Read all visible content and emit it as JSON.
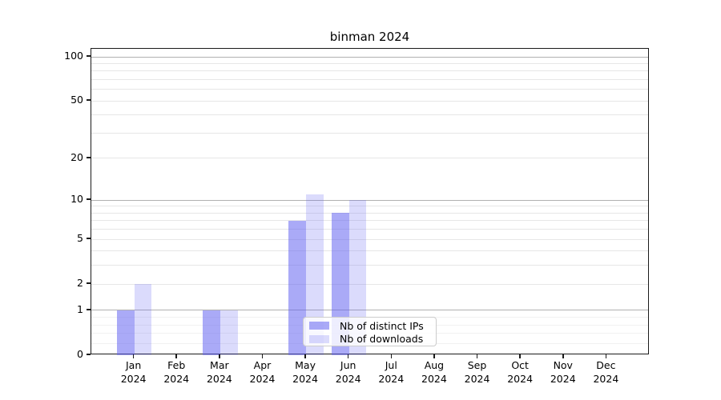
{
  "title": "binman 2024",
  "legend": {
    "items": [
      {
        "label": "Nb of distinct IPs",
        "color": "rgba(100,100,240,0.55)"
      },
      {
        "label": "Nb of downloads",
        "color": "rgba(100,100,240,0.23)"
      }
    ]
  },
  "chart_data": {
    "type": "bar",
    "title": "binman 2024",
    "categories": [
      "Jan",
      "Feb",
      "Mar",
      "Apr",
      "May",
      "Jun",
      "Jul",
      "Aug",
      "Sep",
      "Oct",
      "Nov",
      "Dec"
    ],
    "year_label": "2024",
    "series": [
      {
        "name": "Nb of distinct IPs",
        "color": "rgba(100,100,240,0.55)",
        "values": [
          1,
          0,
          1,
          0,
          7,
          8,
          0,
          0,
          0,
          0,
          0,
          0
        ]
      },
      {
        "name": "Nb of downloads",
        "color": "rgba(100,100,240,0.23)",
        "values": [
          2,
          0,
          1,
          0,
          11,
          10,
          0,
          0,
          0,
          0,
          0,
          0
        ]
      }
    ],
    "yscale": "log1p",
    "ylim": [
      0,
      113
    ],
    "yticks": [
      0,
      1,
      2,
      5,
      10,
      20,
      50,
      100
    ],
    "major_gridlines": [
      1,
      10,
      100
    ],
    "minor_gridlines": [
      2,
      3,
      4,
      5,
      6,
      7,
      8,
      9,
      20,
      30,
      40,
      50,
      60,
      70,
      80,
      90
    ],
    "sub_gridlines": [
      0.2,
      0.4,
      0.6,
      0.8
    ],
    "grid": "horizontal",
    "legend_position": "lower center",
    "xlabel": "",
    "ylabel": ""
  }
}
